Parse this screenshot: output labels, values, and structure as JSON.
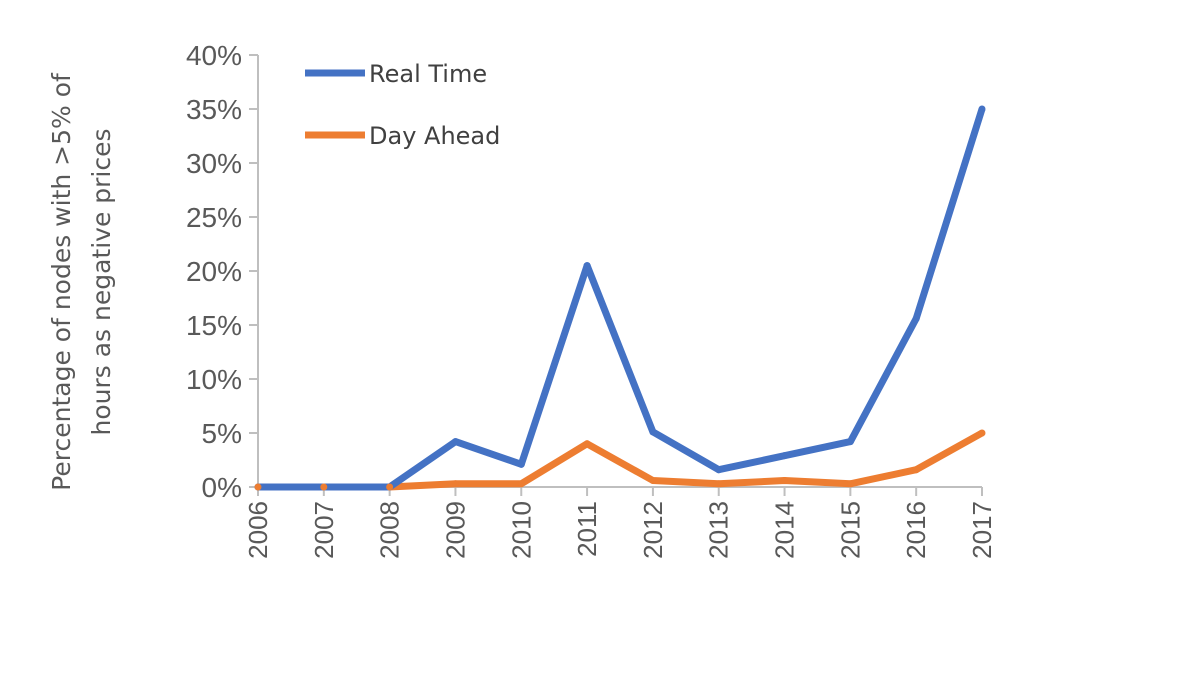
{
  "chart_data": {
    "type": "line",
    "categories": [
      "2006",
      "2007",
      "2008",
      "2009",
      "2010",
      "2011",
      "2012",
      "2013",
      "2014",
      "2015",
      "2016",
      "2017"
    ],
    "series": [
      {
        "name": "Real Time",
        "color": "#4472c4",
        "values": [
          0,
          0,
          0,
          4.2,
          2.1,
          20.5,
          5.1,
          1.6,
          2.9,
          4.2,
          15.6,
          35.0
        ]
      },
      {
        "name": "Day Ahead",
        "color": "#ed7d31",
        "values": [
          0,
          0,
          0,
          0.3,
          0.3,
          4.0,
          0.6,
          0.3,
          0.6,
          0.3,
          1.6,
          5.0
        ]
      }
    ],
    "ylabel_lines": [
      "Percentage of nodes with >5% of",
      "hours as negative prices"
    ],
    "xlabel": "",
    "ylim": [
      0,
      40
    ],
    "yticks": [
      "0%",
      "5%",
      "10%",
      "15%",
      "20%",
      "25%",
      "30%",
      "35%",
      "40%"
    ],
    "grid": false,
    "legend_position": "top-left"
  }
}
